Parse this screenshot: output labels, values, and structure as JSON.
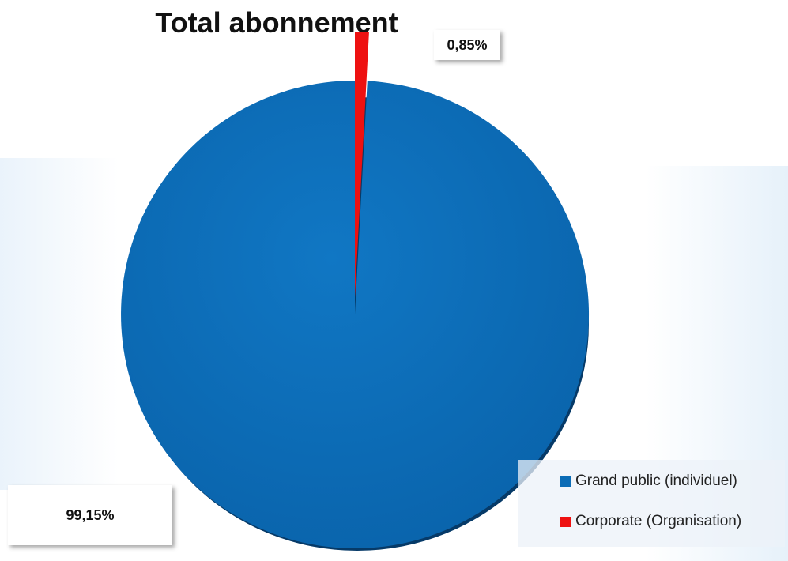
{
  "chart_data": {
    "type": "pie",
    "title": "Total abonnement",
    "slices": [
      {
        "label": "Grand public (individuel)",
        "value": 99.15,
        "display": "99,15%",
        "color": "#0b6cb6"
      },
      {
        "label": "Corporate (Organisation)",
        "value": 0.85,
        "display": "0,85%",
        "color": "#ee1111"
      }
    ],
    "legend_placement": "bottom-right"
  }
}
